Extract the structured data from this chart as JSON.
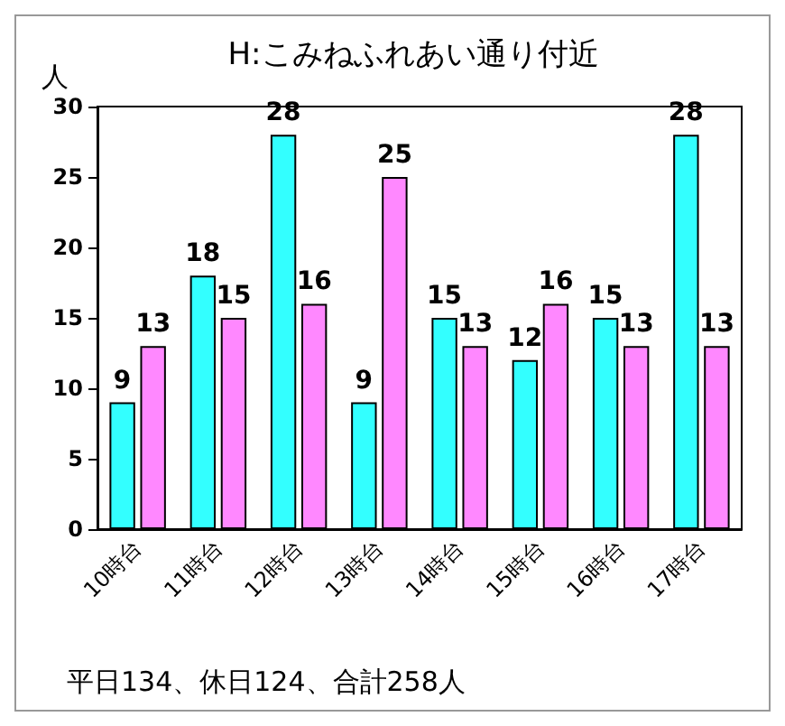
{
  "chart_data": {
    "type": "bar",
    "title": "H:こみねふれあい通り付近",
    "ylabel": "人",
    "categories": [
      "10時台",
      "11時台",
      "12時台",
      "13時台",
      "14時台",
      "15時台",
      "16時台",
      "17時台"
    ],
    "series": [
      {
        "color": "#33ffff",
        "values": [
          9,
          18,
          28,
          9,
          15,
          12,
          15,
          28
        ]
      },
      {
        "color": "#ff88ff",
        "values": [
          13,
          15,
          16,
          25,
          13,
          16,
          13,
          13
        ]
      }
    ],
    "ylim": [
      0,
      30
    ],
    "yticks": [
      0,
      5,
      10,
      15,
      20,
      25,
      30
    ],
    "data_labels": true,
    "annotations": [
      "平日134、休日124、合計258人"
    ]
  }
}
